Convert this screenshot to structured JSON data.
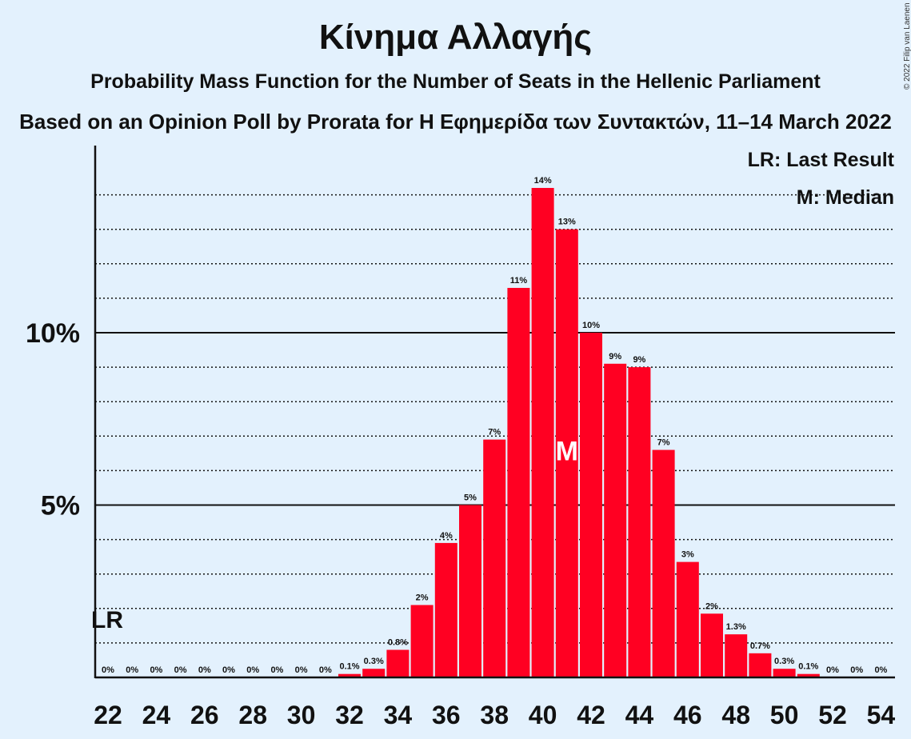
{
  "title": "Κίνημα Αλλαγής",
  "subtitle": "Probability Mass Function for the Number of Seats in the Hellenic Parliament",
  "subtitle2": "Based on an Opinion Poll by Prorata for Η Εφημερίδα των Συντακτών, 11–14 March 2022",
  "copyright": "© 2022 Filip van Laenen",
  "legend": {
    "last_result": "LR: Last Result",
    "median": "M: Median"
  },
  "colors": {
    "background": "#e3f1fd",
    "bar": "#ff0022",
    "text": "#111111"
  },
  "chart_data": {
    "type": "bar",
    "title": "Κίνημα Αλλαγής",
    "xlabel": "",
    "ylabel": "",
    "x": [
      22,
      23,
      24,
      25,
      26,
      27,
      28,
      29,
      30,
      31,
      32,
      33,
      34,
      35,
      36,
      37,
      38,
      39,
      40,
      41,
      42,
      43,
      44,
      45,
      46,
      47,
      48,
      49,
      50,
      51,
      52,
      53,
      54
    ],
    "values": [
      0,
      0,
      0,
      0,
      0,
      0,
      0,
      0,
      0,
      0,
      0.1,
      0.25,
      0.8,
      2.1,
      3.9,
      5.0,
      6.9,
      11.3,
      14.2,
      13.0,
      10.0,
      9.1,
      9.0,
      6.6,
      3.35,
      1.85,
      1.25,
      0.7,
      0.25,
      0.1,
      0,
      0,
      0
    ],
    "value_labels": [
      "0%",
      "0%",
      "0%",
      "0%",
      "0%",
      "0%",
      "0%",
      "0%",
      "0%",
      "0%",
      "0.1%",
      "0.3%",
      "0.8%",
      "2%",
      "4%",
      "5%",
      "7%",
      "11%",
      "14%",
      "13%",
      "10%",
      "9%",
      "9%",
      "7%",
      "3%",
      "2%",
      "1.3%",
      "0.7%",
      "0.3%",
      "0.1%",
      "0%",
      "0%",
      "0%"
    ],
    "x_ticks": [
      "22",
      "24",
      "26",
      "28",
      "30",
      "32",
      "34",
      "36",
      "38",
      "40",
      "42",
      "44",
      "46",
      "48",
      "50",
      "52",
      "54"
    ],
    "y_ticks": [
      {
        "value": 5,
        "label": "5%"
      },
      {
        "value": 10,
        "label": "10%"
      }
    ],
    "ylim": [
      0,
      15
    ],
    "minor_gridlines": [
      1,
      2,
      3,
      4,
      6,
      7,
      8,
      9,
      11,
      12,
      13,
      14
    ],
    "median_seat": 41,
    "median_label": "M",
    "last_result_seat": 22,
    "last_result_label": "LR"
  }
}
